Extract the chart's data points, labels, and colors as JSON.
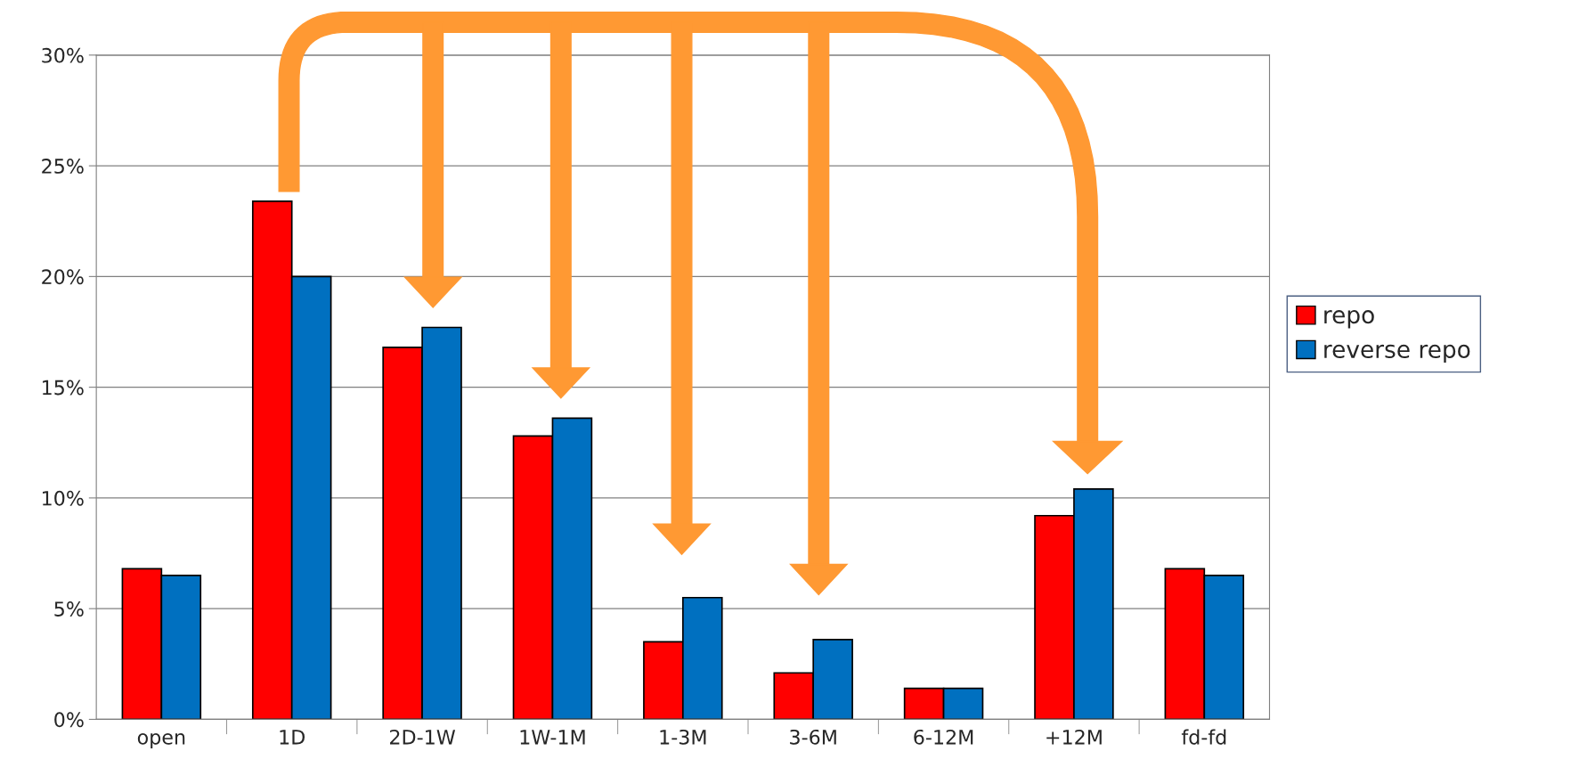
{
  "chart_data": {
    "type": "bar",
    "categories": [
      "open",
      "1D",
      "2D-1W",
      "1W-1M",
      "1-3M",
      "3-6M",
      "6-12M",
      "+12M",
      "fd-fd"
    ],
    "series": [
      {
        "name": "repo",
        "color": "#ff0000",
        "values": [
          6.8,
          23.4,
          16.8,
          12.8,
          3.5,
          2.1,
          1.4,
          9.2,
          6.8
        ]
      },
      {
        "name": "reverse repo",
        "color": "#0070c0",
        "values": [
          6.5,
          20.0,
          17.7,
          13.6,
          5.5,
          3.6,
          1.4,
          10.4,
          6.5
        ]
      }
    ],
    "ylim": [
      0,
      30
    ],
    "yticks": [
      {
        "value": 0,
        "label": "0%"
      },
      {
        "value": 5,
        "label": "5%"
      },
      {
        "value": 10,
        "label": "10%"
      },
      {
        "value": 15,
        "label": "15%"
      },
      {
        "value": 20,
        "label": "20%"
      },
      {
        "value": 25,
        "label": "25%"
      },
      {
        "value": 30,
        "label": "30%"
      }
    ],
    "grid": "y",
    "legend": "right"
  }
}
